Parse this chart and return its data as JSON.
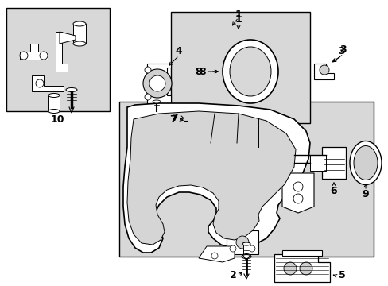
{
  "bg_color": "#ffffff",
  "box_color": "#d8d8d8",
  "line_color": "#000000",
  "white": "#ffffff",
  "gray_fill": "#c8c8c8",
  "numbers": [
    "1",
    "2",
    "3",
    "4",
    "5",
    "6",
    "7",
    "8",
    "9",
    "10"
  ]
}
